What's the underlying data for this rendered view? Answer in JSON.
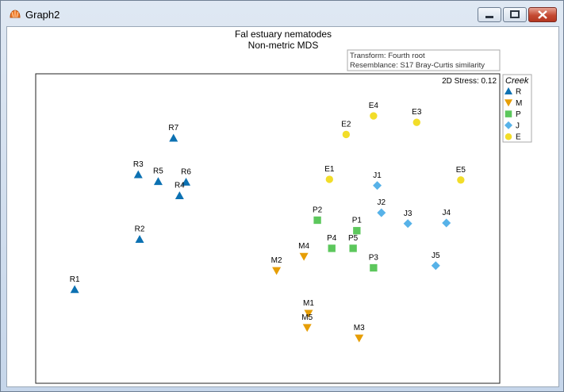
{
  "window": {
    "title": "Graph2"
  },
  "colors": {
    "R": "#0c71b2",
    "M": "#e69e06",
    "P": "#5cc75c",
    "J": "#57b2e8",
    "E": "#f2dd29"
  },
  "chart_data": {
    "type": "scatter",
    "title": "Fal estuary nematodes",
    "subtitle": "Non-metric MDS",
    "info_lines": [
      "Transform: Fourth root",
      "Resemblance: S17 Bray-Curtis similarity"
    ],
    "stress_label": "2D Stress: 0.12",
    "legend": {
      "title": "Creek",
      "placement": "top-right-outside",
      "entries": [
        {
          "label": "R",
          "shape": "triangle-up"
        },
        {
          "label": "M",
          "shape": "triangle-down"
        },
        {
          "label": "P",
          "shape": "square"
        },
        {
          "label": "J",
          "shape": "diamond"
        },
        {
          "label": "E",
          "shape": "circle"
        }
      ]
    },
    "axes_visible": false,
    "xlim": [
      0,
      100
    ],
    "ylim": [
      0,
      100
    ],
    "points": [
      {
        "label": "R7",
        "group": "R",
        "x": 29.7,
        "y": 79.2
      },
      {
        "label": "R3",
        "group": "R",
        "x": 22.1,
        "y": 67.4
      },
      {
        "label": "R5",
        "group": "R",
        "x": 26.4,
        "y": 65.2
      },
      {
        "label": "R6",
        "group": "R",
        "x": 32.4,
        "y": 65.0
      },
      {
        "label": "R4",
        "group": "R",
        "x": 31.0,
        "y": 60.6
      },
      {
        "label": "R2",
        "group": "R",
        "x": 22.4,
        "y": 46.5
      },
      {
        "label": "R1",
        "group": "R",
        "x": 8.4,
        "y": 30.3
      },
      {
        "label": "M4",
        "group": "M",
        "x": 57.8,
        "y": 41.0
      },
      {
        "label": "M2",
        "group": "M",
        "x": 51.9,
        "y": 36.4
      },
      {
        "label": "M1",
        "group": "M",
        "x": 58.8,
        "y": 22.6
      },
      {
        "label": "M5",
        "group": "M",
        "x": 58.5,
        "y": 18.0
      },
      {
        "label": "M3",
        "group": "M",
        "x": 69.7,
        "y": 14.6
      },
      {
        "label": "P2",
        "group": "P",
        "x": 60.7,
        "y": 52.7
      },
      {
        "label": "P1",
        "group": "P",
        "x": 69.2,
        "y": 49.3
      },
      {
        "label": "P4",
        "group": "P",
        "x": 63.8,
        "y": 43.6
      },
      {
        "label": "P5",
        "group": "P",
        "x": 68.4,
        "y": 43.6
      },
      {
        "label": "P3",
        "group": "P",
        "x": 72.8,
        "y": 37.3
      },
      {
        "label": "J1",
        "group": "J",
        "x": 73.6,
        "y": 63.9
      },
      {
        "label": "J2",
        "group": "J",
        "x": 74.5,
        "y": 55.1
      },
      {
        "label": "J3",
        "group": "J",
        "x": 80.2,
        "y": 51.6
      },
      {
        "label": "J4",
        "group": "J",
        "x": 88.5,
        "y": 51.8
      },
      {
        "label": "J5",
        "group": "J",
        "x": 86.2,
        "y": 38.0
      },
      {
        "label": "E4",
        "group": "E",
        "x": 72.8,
        "y": 86.4
      },
      {
        "label": "E3",
        "group": "E",
        "x": 82.1,
        "y": 84.3
      },
      {
        "label": "E2",
        "group": "E",
        "x": 66.9,
        "y": 80.4
      },
      {
        "label": "E1",
        "group": "E",
        "x": 63.3,
        "y": 65.9
      },
      {
        "label": "E5",
        "group": "E",
        "x": 91.6,
        "y": 65.7
      }
    ]
  }
}
